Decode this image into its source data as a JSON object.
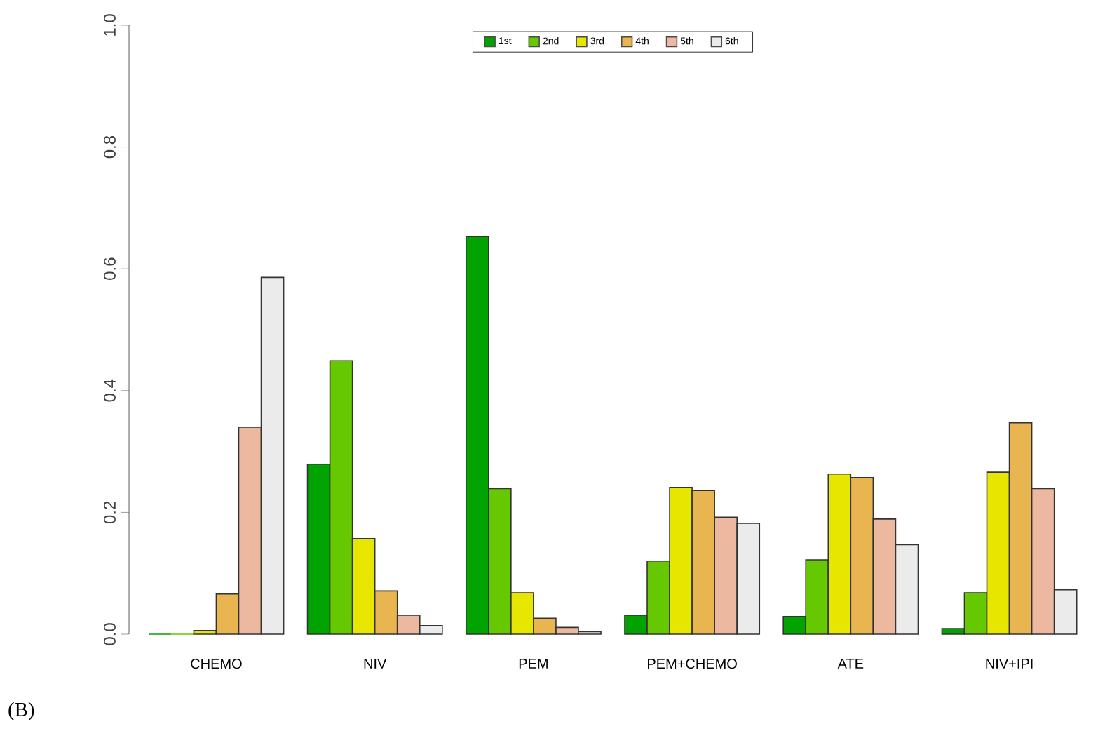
{
  "chart_data": {
    "type": "bar",
    "categories": [
      "CHEMO",
      "NIV",
      "PEM",
      "PEM+CHEMO",
      "ATE",
      "NIV+IPI"
    ],
    "series": [
      {
        "name": "1st",
        "color": "#00a300",
        "values": [
          0,
          0.279,
          0.653,
          0.031,
          0.029,
          0.009
        ]
      },
      {
        "name": "2nd",
        "color": "#66c800",
        "values": [
          0,
          0.449,
          0.239,
          0.12,
          0.122,
          0.068
        ]
      },
      {
        "name": "3rd",
        "color": "#e6e600",
        "values": [
          0.006,
          0.157,
          0.068,
          0.241,
          0.263,
          0.266
        ]
      },
      {
        "name": "4th",
        "color": "#e8b550",
        "values": [
          0.066,
          0.071,
          0.026,
          0.236,
          0.257,
          0.347
        ]
      },
      {
        "name": "5th",
        "color": "#ecb9a0",
        "values": [
          0.34,
          0.031,
          0.011,
          0.192,
          0.189,
          0.239
        ]
      },
      {
        "name": "6th",
        "color": "#ebebeb",
        "values": [
          0.586,
          0.014,
          0.004,
          0.182,
          0.147,
          0.073
        ]
      }
    ],
    "ylim": [
      0,
      1
    ],
    "yticks": [
      {
        "value": 0,
        "label": "0.0"
      },
      {
        "value": 0.2,
        "label": "0.2"
      },
      {
        "value": 0.4,
        "label": "0.4"
      },
      {
        "value": 0.6,
        "label": "0.6"
      },
      {
        "value": 0.8,
        "label": "0.8"
      },
      {
        "value": 1,
        "label": "1.0"
      }
    ],
    "legend": "top",
    "annotations": [
      "(B)"
    ]
  }
}
